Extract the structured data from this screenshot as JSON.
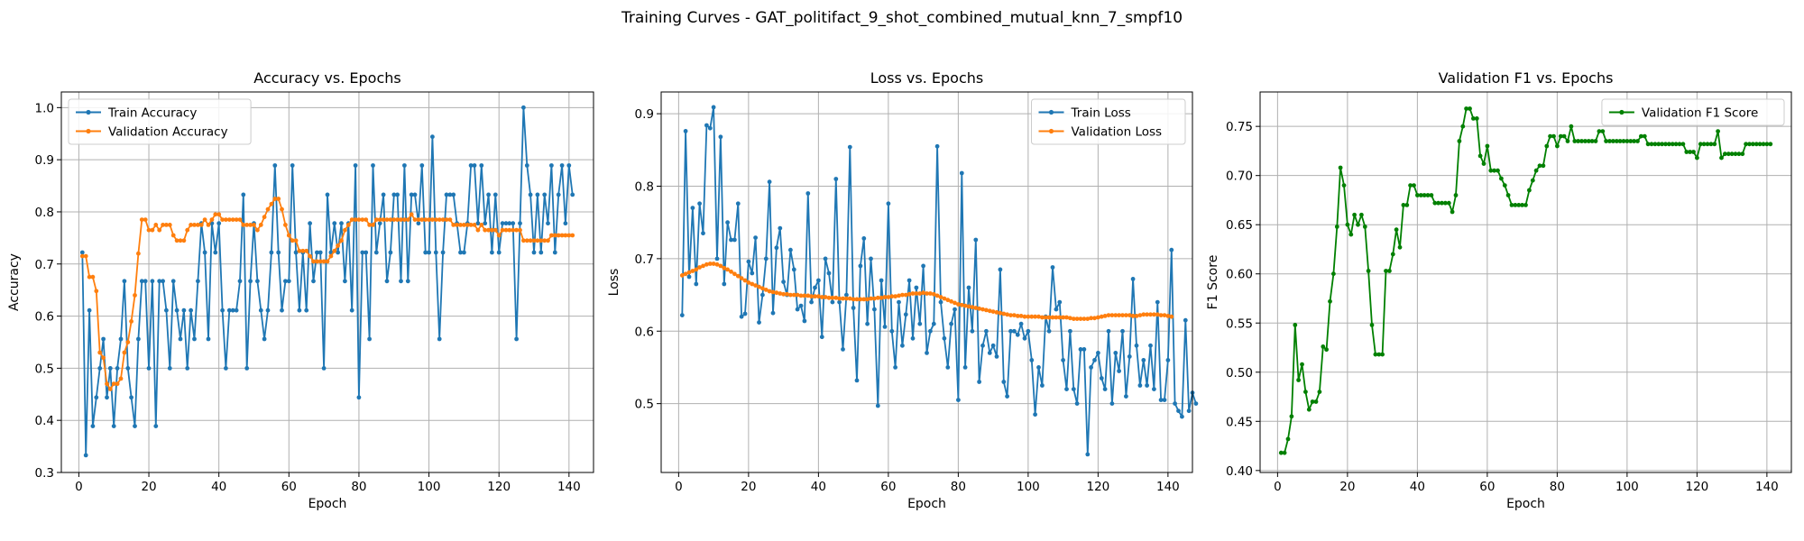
{
  "suptitle": "Training Curves - GAT_politifact_9_shot_combined_mutual_knn_7_smpf10",
  "colors": {
    "train": "#1f77b4",
    "validation": "#ff7f0e",
    "f1": "#008000",
    "grid": "#b0b0b0"
  },
  "chart_data": [
    {
      "type": "line",
      "title": "Accuracy vs. Epochs",
      "xlabel": "Epoch",
      "ylabel": "Accuracy",
      "xlim": [
        -5,
        147
      ],
      "ylim": [
        0.3,
        1.03
      ],
      "xticks": [
        0,
        20,
        40,
        60,
        80,
        100,
        120,
        140
      ],
      "yticks": [
        0.3,
        0.4,
        0.5,
        0.6,
        0.7,
        0.8,
        0.9,
        1.0
      ],
      "ytick_labels": [
        "0.3",
        "0.4",
        "0.5",
        "0.6",
        "0.7",
        "0.8",
        "0.9",
        "1.0"
      ],
      "grid": true,
      "legend_position": "upper-left",
      "series": [
        {
          "name": "Train Accuracy",
          "color": "#1f77b4",
          "values": [
            0.722,
            0.333,
            0.611,
            0.389,
            0.444,
            0.5,
            0.556,
            0.444,
            0.5,
            0.389,
            0.5,
            0.556,
            0.667,
            0.5,
            0.444,
            0.389,
            0.556,
            0.667,
            0.667,
            0.5,
            0.667,
            0.389,
            0.667,
            0.667,
            0.611,
            0.5,
            0.667,
            0.611,
            0.556,
            0.611,
            0.5,
            0.611,
            0.556,
            0.667,
            0.778,
            0.722,
            0.556,
            0.778,
            0.722,
            0.778,
            0.611,
            0.5,
            0.611,
            0.611,
            0.611,
            0.667,
            0.833,
            0.5,
            0.667,
            0.778,
            0.667,
            0.611,
            0.556,
            0.611,
            0.722,
            0.889,
            0.722,
            0.611,
            0.667,
            0.667,
            0.889,
            0.722,
            0.611,
            0.722,
            0.611,
            0.778,
            0.667,
            0.722,
            0.722,
            0.5,
            0.833,
            0.722,
            0.778,
            0.722,
            0.778,
            0.667,
            0.778,
            0.611,
            0.889,
            0.444,
            0.722,
            0.722,
            0.556,
            0.889,
            0.722,
            0.778,
            0.833,
            0.667,
            0.722,
            0.833,
            0.833,
            0.667,
            0.889,
            0.667,
            0.833,
            0.833,
            0.778,
            0.889,
            0.722,
            0.722,
            0.944,
            0.722,
            0.556,
            0.722,
            0.833,
            0.833,
            0.833,
            0.778,
            0.722,
            0.722,
            0.778,
            0.889,
            0.889,
            0.778,
            0.889,
            0.778,
            0.833,
            0.722,
            0.833,
            0.722,
            0.778,
            0.778,
            0.778,
            0.778,
            0.556,
            0.778,
            1.0,
            0.889,
            0.833,
            0.722,
            0.833,
            0.722,
            0.833,
            0.778,
            0.889,
            0.722,
            0.833,
            0.889,
            0.778,
            0.889,
            0.833
          ]
        },
        {
          "name": "Validation Accuracy",
          "color": "#ff7f0e",
          "values": [
            0.715,
            0.715,
            0.675,
            0.675,
            0.648,
            0.53,
            0.52,
            0.47,
            0.46,
            0.47,
            0.47,
            0.48,
            0.53,
            0.55,
            0.59,
            0.64,
            0.72,
            0.785,
            0.785,
            0.765,
            0.765,
            0.775,
            0.765,
            0.775,
            0.775,
            0.775,
            0.755,
            0.745,
            0.745,
            0.745,
            0.765,
            0.775,
            0.775,
            0.775,
            0.775,
            0.785,
            0.775,
            0.785,
            0.795,
            0.795,
            0.785,
            0.785,
            0.785,
            0.785,
            0.785,
            0.785,
            0.775,
            0.775,
            0.775,
            0.775,
            0.765,
            0.775,
            0.79,
            0.805,
            0.815,
            0.825,
            0.825,
            0.805,
            0.775,
            0.755,
            0.745,
            0.745,
            0.725,
            0.725,
            0.725,
            0.715,
            0.705,
            0.705,
            0.705,
            0.705,
            0.705,
            0.715,
            0.725,
            0.735,
            0.745,
            0.765,
            0.775,
            0.785,
            0.785,
            0.785,
            0.785,
            0.785,
            0.775,
            0.775,
            0.785,
            0.785,
            0.785,
            0.785,
            0.785,
            0.785,
            0.785,
            0.785,
            0.785,
            0.785,
            0.795,
            0.785,
            0.785,
            0.785,
            0.785,
            0.785,
            0.785,
            0.785,
            0.785,
            0.785,
            0.785,
            0.785,
            0.775,
            0.775,
            0.775,
            0.775,
            0.775,
            0.775,
            0.775,
            0.765,
            0.775,
            0.765,
            0.765,
            0.765,
            0.765,
            0.755,
            0.765,
            0.765,
            0.765,
            0.765,
            0.765,
            0.765,
            0.745,
            0.745,
            0.745,
            0.745,
            0.745,
            0.745,
            0.745,
            0.745,
            0.755,
            0.755,
            0.755,
            0.755,
            0.755,
            0.755,
            0.755
          ]
        }
      ]
    },
    {
      "type": "line",
      "title": "Loss vs. Epochs",
      "xlabel": "Epoch",
      "ylabel": "Loss",
      "xlim": [
        -5,
        147
      ],
      "ylim": [
        0.405,
        0.93
      ],
      "xticks": [
        0,
        20,
        40,
        60,
        80,
        100,
        120,
        140
      ],
      "yticks": [
        0.5,
        0.6,
        0.7,
        0.8,
        0.9
      ],
      "ytick_labels": [
        "0.5",
        "0.6",
        "0.7",
        "0.8",
        "0.9"
      ],
      "grid": true,
      "legend_position": "upper-right",
      "series": [
        {
          "name": "Train Loss",
          "color": "#1f77b4",
          "values": [
            0.622,
            0.876,
            0.675,
            0.77,
            0.665,
            0.776,
            0.735,
            0.884,
            0.88,
            0.909,
            0.7,
            0.868,
            0.665,
            0.75,
            0.726,
            0.726,
            0.776,
            0.62,
            0.624,
            0.696,
            0.68,
            0.729,
            0.612,
            0.65,
            0.7,
            0.806,
            0.625,
            0.715,
            0.742,
            0.668,
            0.65,
            0.712,
            0.685,
            0.63,
            0.635,
            0.614,
            0.79,
            0.64,
            0.66,
            0.67,
            0.592,
            0.7,
            0.68,
            0.64,
            0.81,
            0.64,
            0.575,
            0.65,
            0.854,
            0.632,
            0.532,
            0.69,
            0.728,
            0.61,
            0.7,
            0.63,
            0.497,
            0.67,
            0.606,
            0.776,
            0.6,
            0.55,
            0.64,
            0.58,
            0.623,
            0.67,
            0.59,
            0.66,
            0.61,
            0.69,
            0.57,
            0.6,
            0.61,
            0.855,
            0.64,
            0.59,
            0.55,
            0.61,
            0.63,
            0.505,
            0.818,
            0.55,
            0.66,
            0.6,
            0.726,
            0.53,
            0.58,
            0.6,
            0.57,
            0.58,
            0.565,
            0.685,
            0.53,
            0.51,
            0.6,
            0.6,
            0.595,
            0.61,
            0.59,
            0.6,
            0.56,
            0.485,
            0.55,
            0.525,
            0.62,
            0.6,
            0.688,
            0.63,
            0.64,
            0.56,
            0.52,
            0.6,
            0.52,
            0.5,
            0.575,
            0.575,
            0.43,
            0.55,
            0.56,
            0.57,
            0.535,
            0.52,
            0.6,
            0.5,
            0.57,
            0.545,
            0.6,
            0.51,
            0.565,
            0.672,
            0.58,
            0.525,
            0.56,
            0.525,
            0.58,
            0.52,
            0.64,
            0.505,
            0.505,
            0.56,
            0.712,
            0.5,
            0.49,
            0.482,
            0.615,
            0.49,
            0.515,
            0.5
          ]
        },
        {
          "name": "Validation Loss",
          "color": "#ff7f0e",
          "values": [
            0.677,
            0.679,
            0.681,
            0.683,
            0.685,
            0.688,
            0.69,
            0.692,
            0.693,
            0.693,
            0.692,
            0.69,
            0.687,
            0.685,
            0.682,
            0.679,
            0.676,
            0.673,
            0.67,
            0.667,
            0.665,
            0.663,
            0.661,
            0.659,
            0.657,
            0.655,
            0.654,
            0.653,
            0.652,
            0.651,
            0.651,
            0.65,
            0.65,
            0.65,
            0.649,
            0.649,
            0.649,
            0.648,
            0.648,
            0.648,
            0.647,
            0.647,
            0.646,
            0.646,
            0.646,
            0.645,
            0.645,
            0.645,
            0.645,
            0.644,
            0.644,
            0.644,
            0.644,
            0.644,
            0.645,
            0.645,
            0.646,
            0.646,
            0.647,
            0.647,
            0.648,
            0.648,
            0.649,
            0.65,
            0.65,
            0.651,
            0.652,
            0.652,
            0.652,
            0.653,
            0.652,
            0.652,
            0.651,
            0.649,
            0.647,
            0.645,
            0.643,
            0.641,
            0.639,
            0.637,
            0.636,
            0.635,
            0.634,
            0.633,
            0.632,
            0.631,
            0.63,
            0.629,
            0.628,
            0.627,
            0.626,
            0.625,
            0.624,
            0.623,
            0.622,
            0.622,
            0.621,
            0.621,
            0.62,
            0.62,
            0.62,
            0.62,
            0.62,
            0.619,
            0.619,
            0.619,
            0.619,
            0.619,
            0.619,
            0.619,
            0.619,
            0.618,
            0.617,
            0.617,
            0.617,
            0.617,
            0.617,
            0.618,
            0.618,
            0.619,
            0.62,
            0.621,
            0.622,
            0.622,
            0.622,
            0.622,
            0.622,
            0.622,
            0.622,
            0.621,
            0.621,
            0.622,
            0.623,
            0.623,
            0.623,
            0.623,
            0.623,
            0.622,
            0.622,
            0.621,
            0.62
          ]
        }
      ]
    },
    {
      "type": "line",
      "title": "Validation F1 vs. Epochs",
      "xlabel": "Epoch",
      "ylabel": "F1 Score",
      "xlim": [
        -5,
        147
      ],
      "ylim": [
        0.398,
        0.785
      ],
      "xticks": [
        0,
        20,
        40,
        60,
        80,
        100,
        120,
        140
      ],
      "yticks": [
        0.4,
        0.45,
        0.5,
        0.55,
        0.6,
        0.65,
        0.7,
        0.75
      ],
      "ytick_labels": [
        "0.40",
        "0.45",
        "0.50",
        "0.55",
        "0.60",
        "0.65",
        "0.70",
        "0.75"
      ],
      "grid": true,
      "legend_position": "upper-right",
      "series": [
        {
          "name": "Validation F1 Score",
          "color": "#008000",
          "values": [
            0.418,
            0.418,
            0.432,
            0.455,
            0.548,
            0.492,
            0.508,
            0.48,
            0.462,
            0.47,
            0.47,
            0.48,
            0.526,
            0.523,
            0.572,
            0.6,
            0.648,
            0.708,
            0.69,
            0.65,
            0.64,
            0.66,
            0.65,
            0.66,
            0.648,
            0.603,
            0.548,
            0.518,
            0.518,
            0.518,
            0.603,
            0.603,
            0.62,
            0.645,
            0.627,
            0.67,
            0.67,
            0.69,
            0.69,
            0.68,
            0.68,
            0.68,
            0.68,
            0.68,
            0.672,
            0.672,
            0.672,
            0.672,
            0.672,
            0.663,
            0.68,
            0.735,
            0.75,
            0.768,
            0.768,
            0.758,
            0.758,
            0.72,
            0.712,
            0.73,
            0.705,
            0.705,
            0.705,
            0.697,
            0.69,
            0.68,
            0.67,
            0.67,
            0.67,
            0.67,
            0.67,
            0.685,
            0.695,
            0.705,
            0.71,
            0.71,
            0.73,
            0.74,
            0.74,
            0.73,
            0.74,
            0.74,
            0.735,
            0.75,
            0.735,
            0.735,
            0.735,
            0.735,
            0.735,
            0.735,
            0.735,
            0.745,
            0.745,
            0.735,
            0.735,
            0.735,
            0.735,
            0.735,
            0.735,
            0.735,
            0.735,
            0.735,
            0.735,
            0.74,
            0.74,
            0.732,
            0.732,
            0.732,
            0.732,
            0.732,
            0.732,
            0.732,
            0.732,
            0.732,
            0.732,
            0.732,
            0.724,
            0.724,
            0.724,
            0.718,
            0.732,
            0.732,
            0.732,
            0.732,
            0.732,
            0.745,
            0.718,
            0.722,
            0.722,
            0.722,
            0.722,
            0.722,
            0.722,
            0.732,
            0.732,
            0.732,
            0.732,
            0.732,
            0.732,
            0.732,
            0.732
          ]
        }
      ]
    }
  ]
}
